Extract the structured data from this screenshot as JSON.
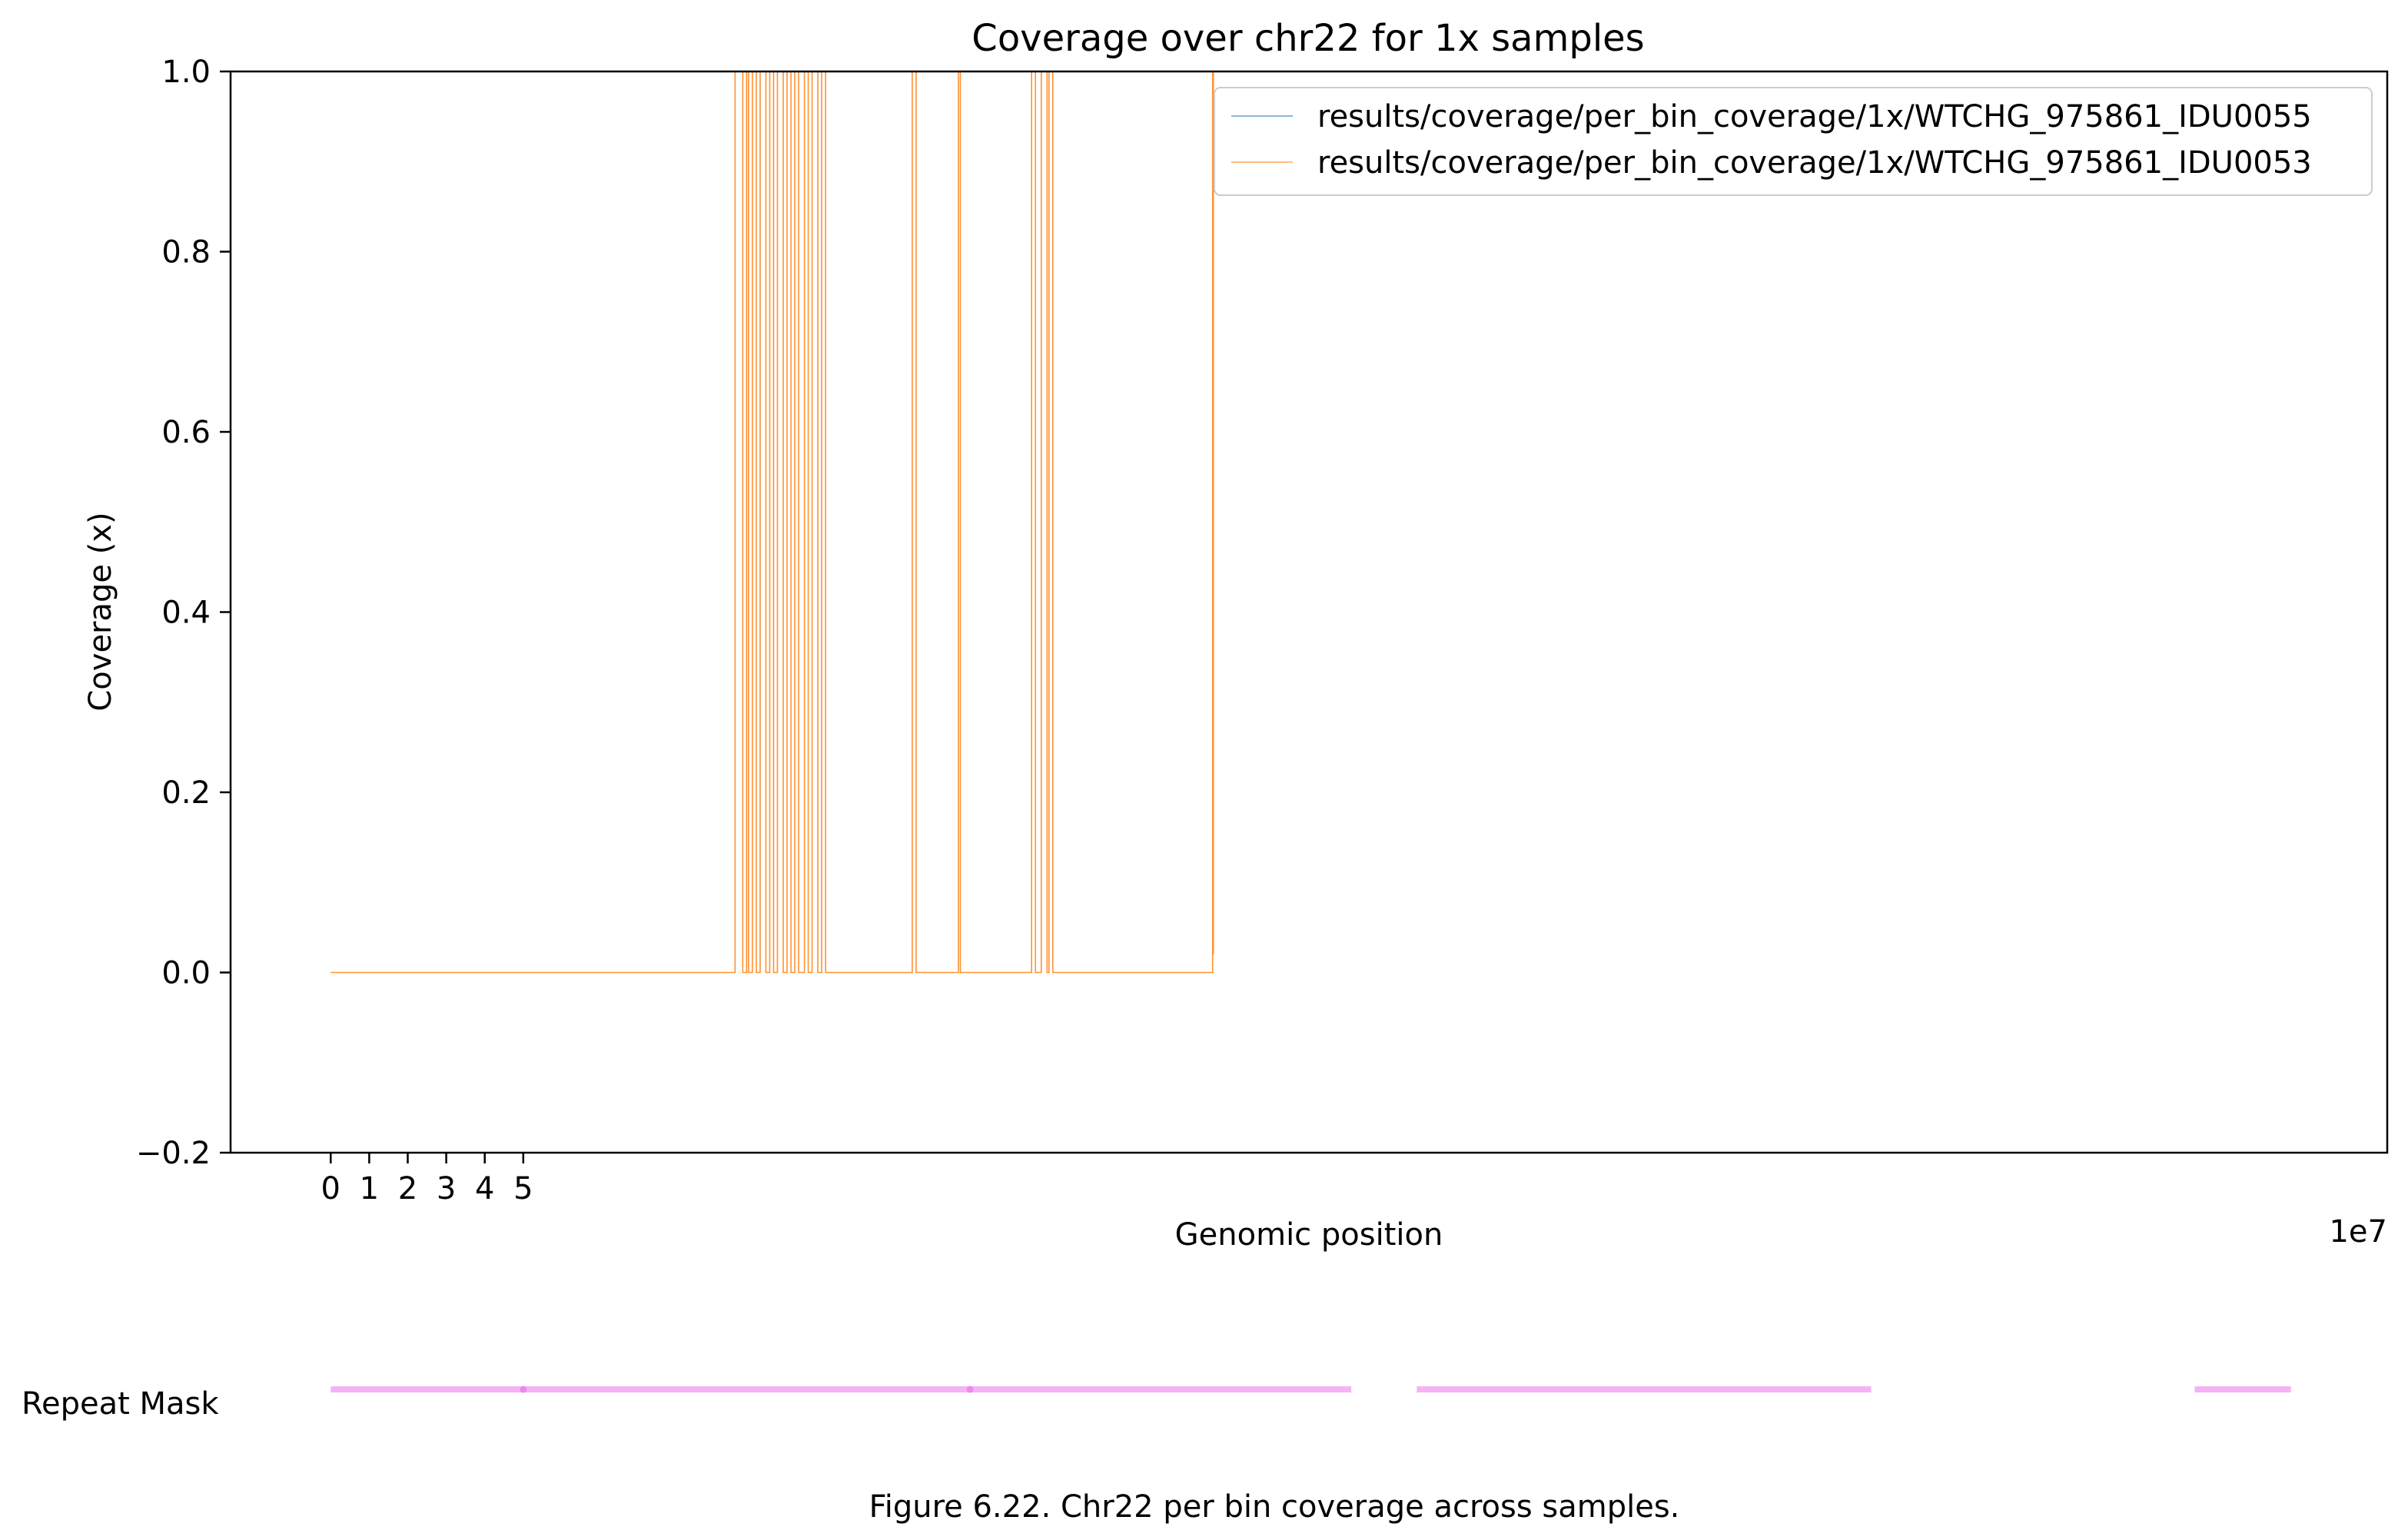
{
  "chart_data": {
    "type": "line",
    "title": "Coverage over chr22 for 1x samples",
    "xlabel": "Genomic position",
    "ylabel": "Coverage (x)",
    "x_offset_label": "1e7",
    "xlim": [
      -2.6,
      53.4
    ],
    "ylim": [
      -0.2,
      1.0
    ],
    "x_ticks": [
      0,
      1,
      2,
      3,
      4,
      5
    ],
    "y_ticks": [
      -0.2,
      0.0,
      0.2,
      0.4,
      0.6,
      0.8,
      1.0
    ],
    "y_tick_labels": [
      "−0.2",
      "0.0",
      "0.2",
      "0.4",
      "0.6",
      "0.8",
      "1.0"
    ],
    "legend_position": "top-right",
    "series": [
      {
        "name": "results/coverage/per_bin_coverage/1x/WTCHG_975861_IDU0055",
        "color": "#1f77b4"
      },
      {
        "name": "results/coverage/per_bin_coverage/1x/WTCHG_975861_IDU0053",
        "color": "#ff7f0e",
        "points": [
          [
            0.0,
            0.0
          ],
          [
            10.5,
            0.0
          ],
          [
            10.5,
            1.0
          ],
          [
            10.7,
            1.0
          ],
          [
            10.7,
            0.0
          ],
          [
            10.8,
            0.0
          ],
          [
            10.8,
            1.0
          ],
          [
            10.85,
            1.0
          ],
          [
            10.85,
            0.0
          ],
          [
            10.95,
            0.0
          ],
          [
            10.95,
            1.0
          ],
          [
            11.05,
            1.0
          ],
          [
            11.05,
            0.0
          ],
          [
            11.15,
            0.0
          ],
          [
            11.15,
            1.0
          ],
          [
            11.3,
            1.0
          ],
          [
            11.3,
            0.0
          ],
          [
            11.4,
            0.0
          ],
          [
            11.4,
            1.0
          ],
          [
            11.5,
            1.0
          ],
          [
            11.5,
            0.0
          ],
          [
            11.6,
            0.0
          ],
          [
            11.6,
            1.0
          ],
          [
            11.75,
            1.0
          ],
          [
            11.75,
            0.0
          ],
          [
            11.85,
            0.0
          ],
          [
            11.85,
            1.0
          ],
          [
            11.95,
            1.0
          ],
          [
            11.95,
            0.0
          ],
          [
            12.05,
            0.0
          ],
          [
            12.05,
            1.0
          ],
          [
            12.15,
            1.0
          ],
          [
            12.15,
            0.0
          ],
          [
            12.3,
            0.0
          ],
          [
            12.3,
            1.0
          ],
          [
            12.4,
            1.0
          ],
          [
            12.4,
            0.0
          ],
          [
            12.5,
            0.0
          ],
          [
            12.5,
            1.0
          ],
          [
            12.65,
            1.0
          ],
          [
            12.65,
            0.0
          ],
          [
            12.75,
            0.0
          ],
          [
            12.75,
            1.0
          ],
          [
            12.85,
            1.0
          ],
          [
            12.85,
            0.0
          ],
          [
            15.1,
            0.0
          ],
          [
            15.1,
            1.0
          ],
          [
            15.2,
            1.0
          ],
          [
            15.2,
            0.0
          ],
          [
            16.3,
            0.0
          ],
          [
            16.3,
            1.0
          ],
          [
            16.35,
            1.0
          ],
          [
            16.35,
            0.0
          ],
          [
            18.2,
            0.0
          ],
          [
            18.2,
            1.0
          ],
          [
            18.3,
            1.0
          ],
          [
            18.3,
            0.0
          ],
          [
            18.45,
            0.0
          ],
          [
            18.45,
            1.0
          ],
          [
            18.6,
            1.0
          ],
          [
            18.6,
            0.0
          ],
          [
            18.65,
            0.0
          ],
          [
            18.65,
            1.0
          ],
          [
            18.75,
            1.0
          ],
          [
            18.75,
            0.0
          ],
          [
            22.9,
            0.0
          ],
          [
            22.9,
            1.0
          ],
          [
            22.92,
            1.0
          ],
          [
            22.92,
            0.02
          ]
        ]
      }
    ],
    "repeat_mask": {
      "label": "Repeat Mask",
      "color": "#f5b3f5",
      "segments": [
        [
          0.0,
          26.5
        ],
        [
          28.2,
          40.0
        ],
        [
          48.4,
          50.9
        ]
      ],
      "marks": [
        5.0,
        16.6
      ]
    },
    "caption": "Figure 6.22. Chr22 per bin coverage across samples."
  }
}
